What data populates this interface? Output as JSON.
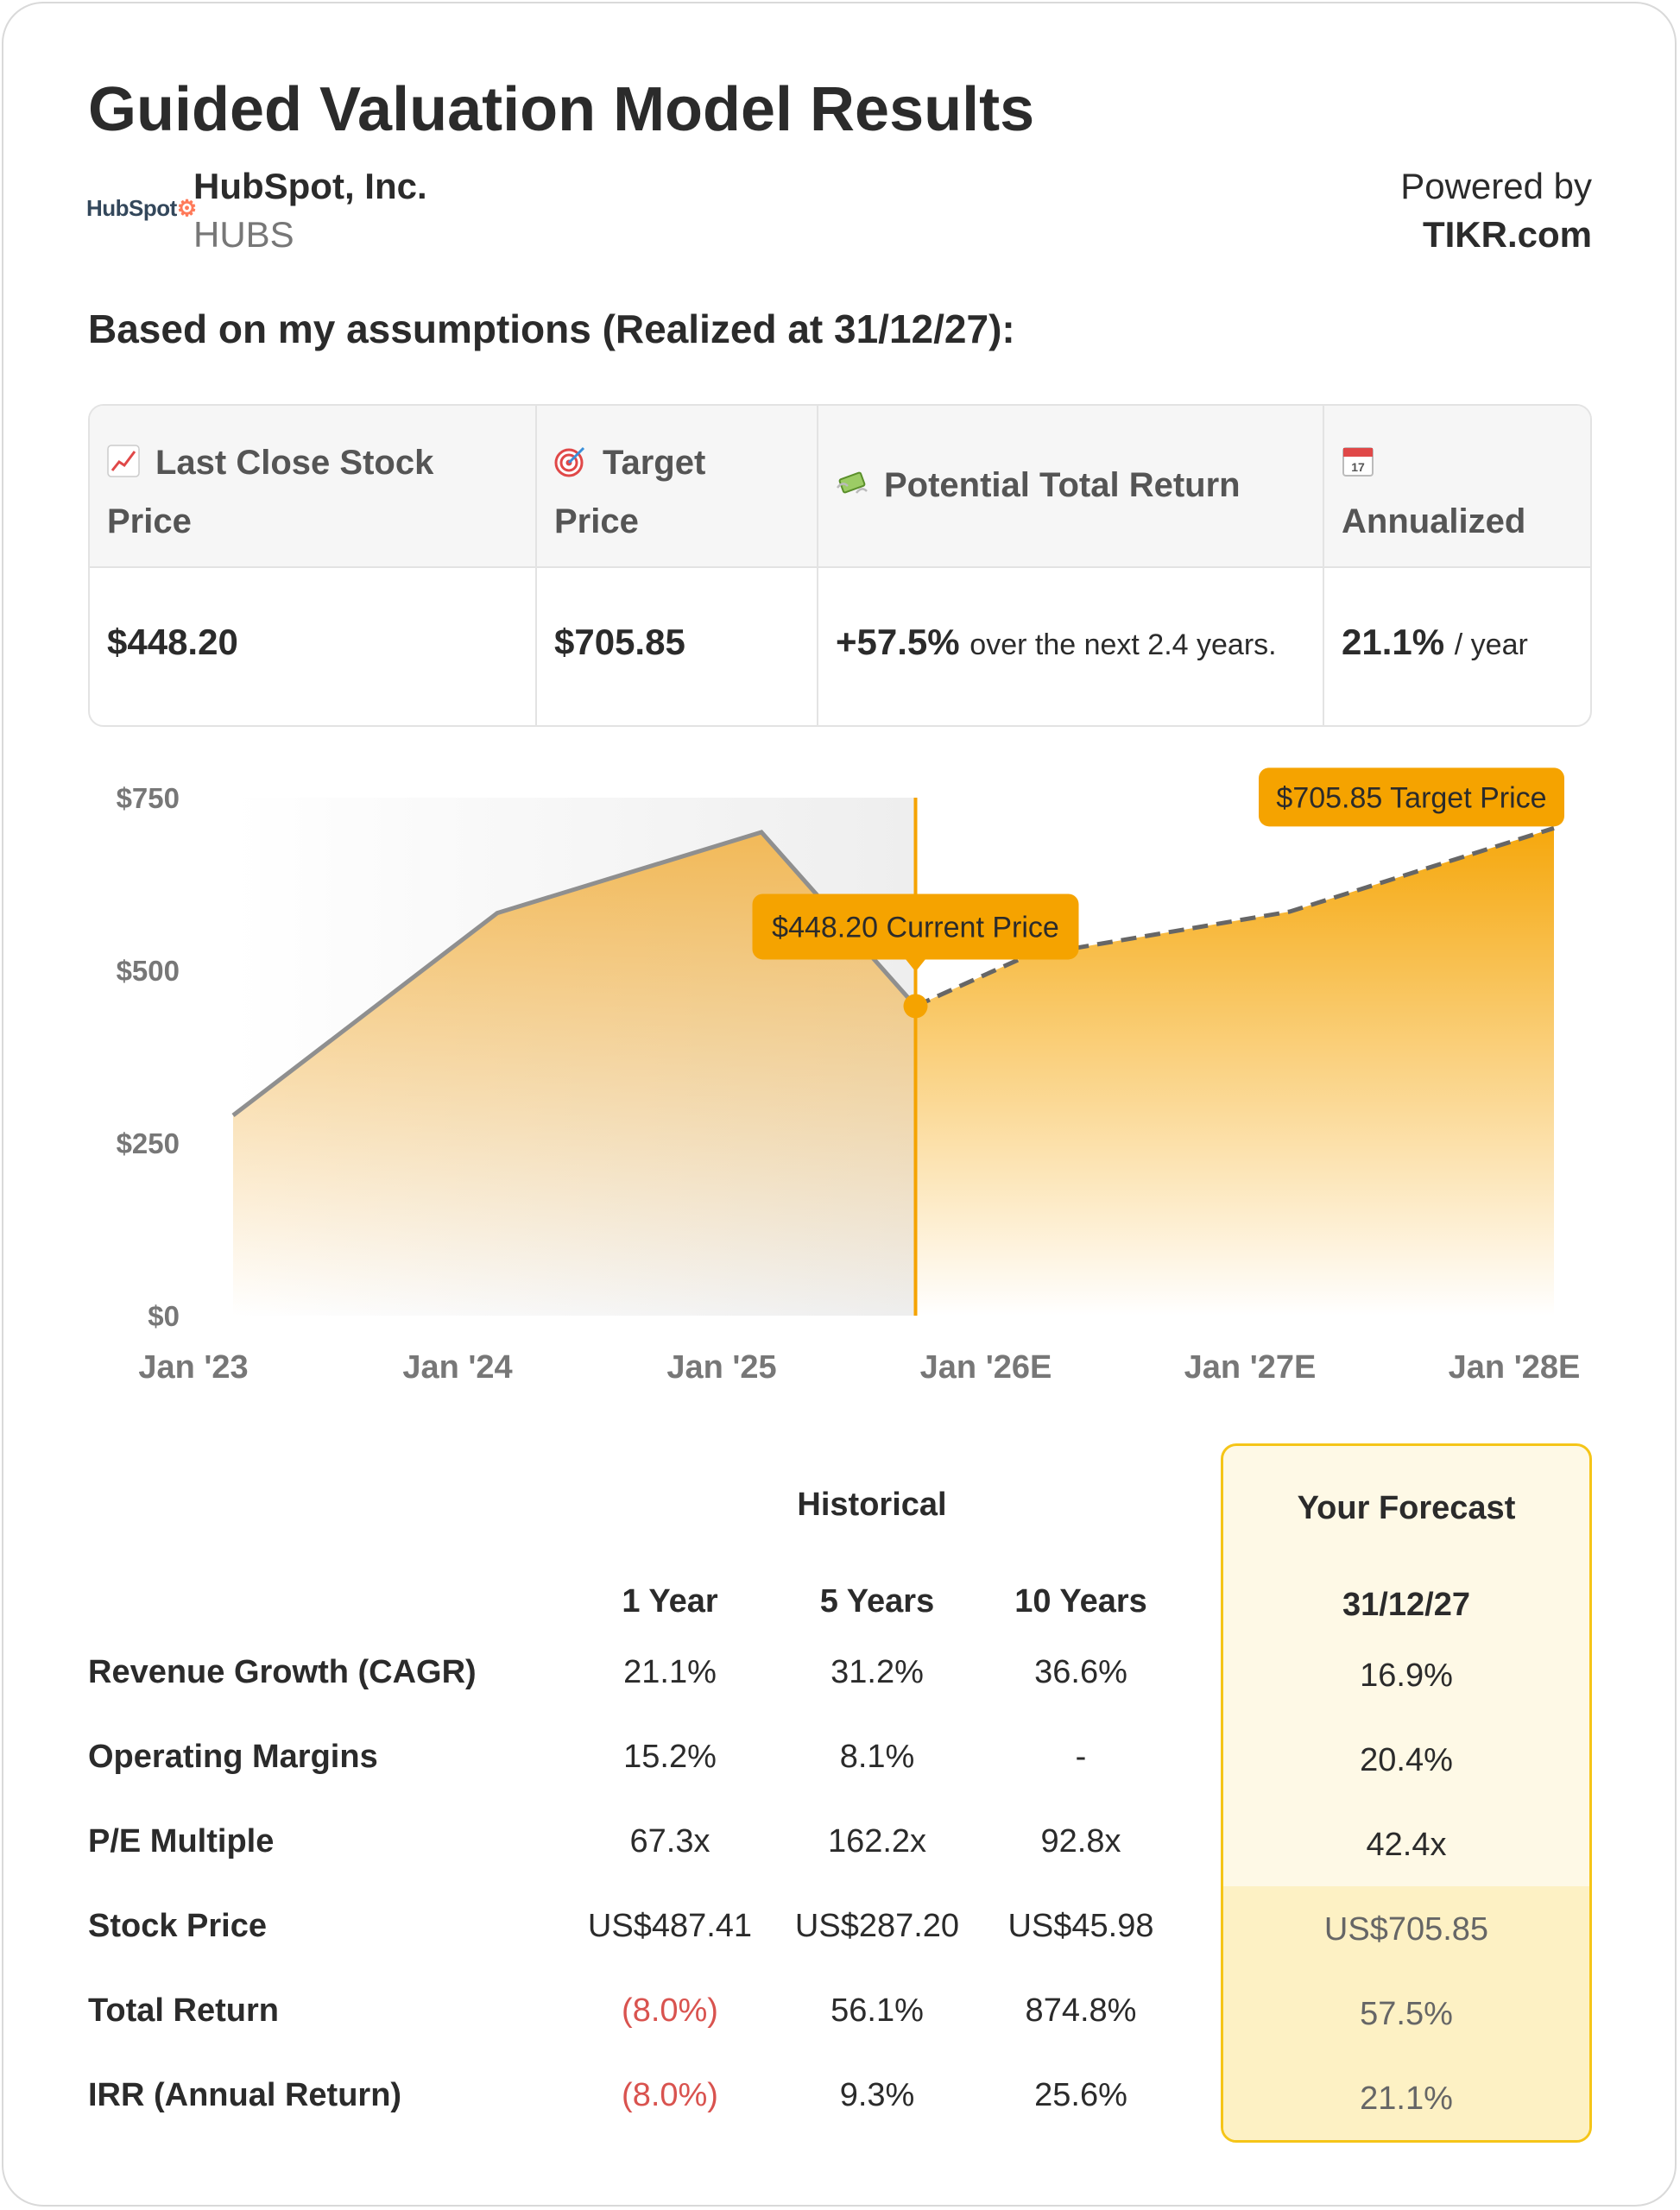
{
  "title": "Guided Valuation Model Results",
  "company": {
    "logo_text": "HubSpot",
    "name": "HubSpot, Inc.",
    "ticker": "HUBS"
  },
  "powered_by": {
    "label": "Powered by",
    "brand": "TIKR.com"
  },
  "subheading": "Based on my assumptions (Realized at 31/12/27):",
  "summary": {
    "headers": [
      {
        "icon": "chart-increasing-icon",
        "line1": "Last Close Stock",
        "line2": "Price"
      },
      {
        "icon": "target-icon",
        "line1": "Target",
        "line2": "Price"
      },
      {
        "icon": "money-with-wings-icon",
        "line1": "Potential Total Return",
        "line2": ""
      },
      {
        "icon": "calendar-icon",
        "line1": "",
        "line2": "Annualized"
      }
    ],
    "last_close": "$448.20",
    "target_price": "$705.85",
    "total_return": "+57.5%",
    "total_return_note": "over the next 2.4 years.",
    "annualized": "21.1%",
    "annualized_note": "/ year"
  },
  "chart_data": {
    "type": "area",
    "x_ticks": [
      "Jan '23",
      "Jan '24",
      "Jan '25",
      "Jan '26E",
      "Jan '27E",
      "Jan '28E"
    ],
    "y_ticks": [
      "$750",
      "$500",
      "$250",
      "$0"
    ],
    "ylim": [
      0,
      750
    ],
    "historical": {
      "x": [
        "2023-01",
        "2024-01",
        "2025-01",
        "2025-08"
      ],
      "y": [
        290,
        583,
        700,
        448.2
      ]
    },
    "forecast": {
      "x": [
        "2025-08",
        "2026-01",
        "2027-01",
        "2028-01"
      ],
      "y": [
        448.2,
        520,
        585,
        705.85
      ]
    },
    "annotations": {
      "current": "$448.20 Current Price",
      "target": "$705.85 Target Price"
    },
    "colors": {
      "accent": "#f5a300",
      "line": "#8f8f8f",
      "forecast_line": "#666666"
    }
  },
  "metrics": {
    "historical_label": "Historical",
    "forecast_label": "Your Forecast",
    "columns": [
      "1 Year",
      "5 Years",
      "10 Years"
    ],
    "forecast_column": "31/12/27",
    "rows": [
      {
        "label": "Revenue Growth (CAGR)",
        "values": [
          "21.1%",
          "31.2%",
          "36.6%"
        ],
        "forecast": "16.9%"
      },
      {
        "label": "Operating Margins",
        "values": [
          "15.2%",
          "8.1%",
          "-"
        ],
        "forecast": "20.4%"
      },
      {
        "label": "P/E Multiple",
        "values": [
          "67.3x",
          "162.2x",
          "92.8x"
        ],
        "forecast": "42.4x"
      },
      {
        "label": "Stock Price",
        "values": [
          "US$487.41",
          "US$287.20",
          "US$45.98"
        ],
        "forecast": "US$705.85"
      },
      {
        "label": "Total Return",
        "values": [
          "(8.0%)",
          "56.1%",
          "874.8%"
        ],
        "forecast": "57.5%"
      },
      {
        "label": "IRR (Annual Return)",
        "values": [
          "(8.0%)",
          "9.3%",
          "25.6%"
        ],
        "forecast": "21.1%"
      }
    ],
    "negative_color": "#d9534f"
  }
}
